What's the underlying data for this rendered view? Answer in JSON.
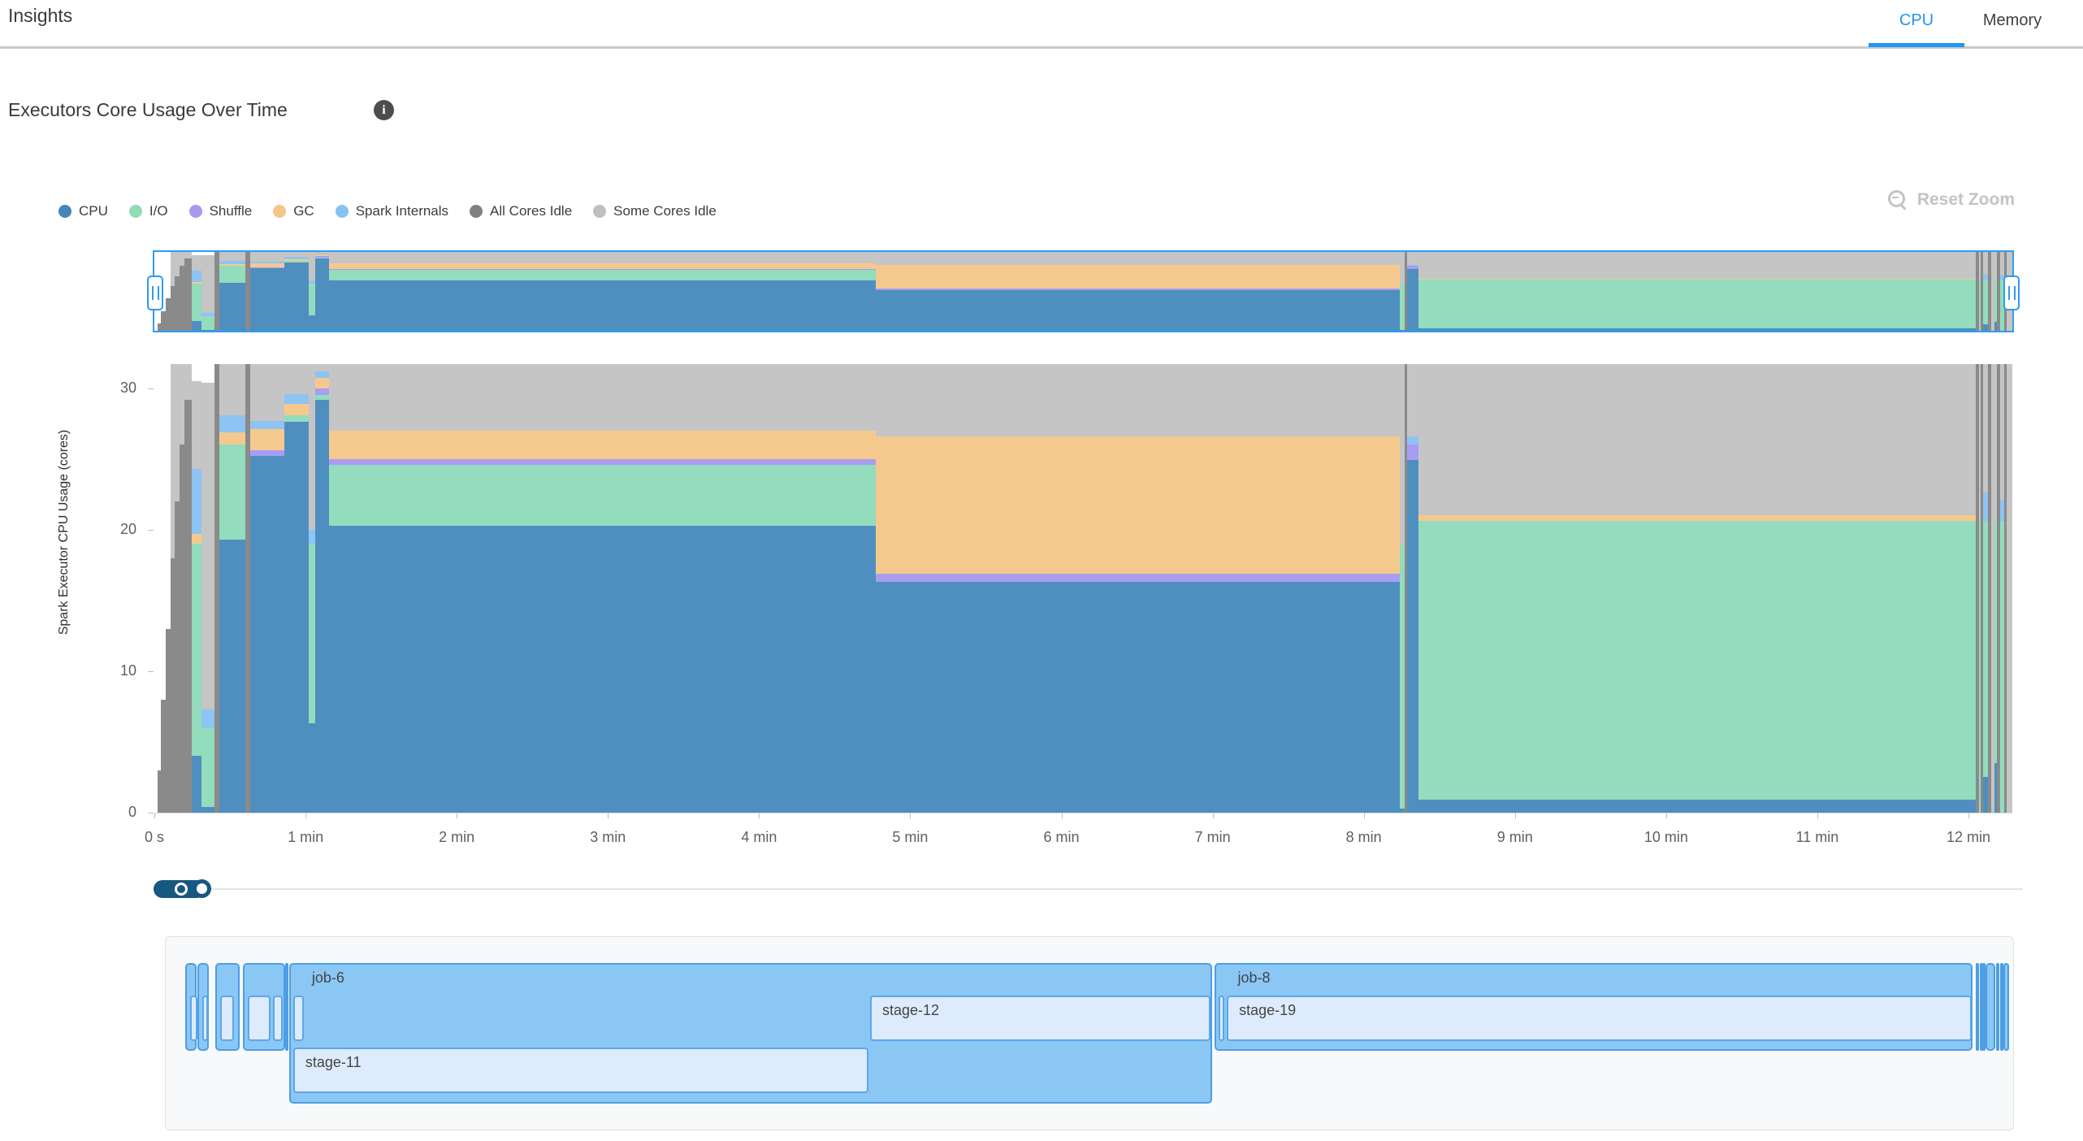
{
  "header": {
    "title": "Insights",
    "tabs": [
      {
        "label": "CPU",
        "active": true
      },
      {
        "label": "Memory",
        "active": false
      }
    ]
  },
  "section": {
    "title": "Executors Core Usage Over Time",
    "info_glyph": "i"
  },
  "toolbar": {
    "reset_zoom_label": "Reset Zoom"
  },
  "legend": [
    {
      "key": "cpu",
      "label": "CPU",
      "color": "#4486b8"
    },
    {
      "key": "io",
      "label": "I/O",
      "color": "#8fdcb5"
    },
    {
      "key": "shuffle",
      "label": "Shuffle",
      "color": "#a799f0"
    },
    {
      "key": "gc",
      "label": "GC",
      "color": "#f4c688"
    },
    {
      "key": "internals",
      "label": "Spark Internals",
      "color": "#87c3f0"
    },
    {
      "key": "all_idle",
      "label": "All Cores Idle",
      "color": "#808080"
    },
    {
      "key": "some_idle",
      "label": "Some Cores Idle",
      "color": "#bfbfbf"
    }
  ],
  "chart_data": {
    "type": "area",
    "title": "Executors Core Usage Over Time",
    "ylabel": "Spark Executor CPU Usage (cores)",
    "ylim": [
      0,
      31.7
    ],
    "yticks": [
      0,
      10,
      20,
      30
    ],
    "xlim_minutes": [
      0,
      12.29
    ],
    "xticks": [
      {
        "minute": 0,
        "label": "0 s"
      },
      {
        "minute": 1,
        "label": "1 min"
      },
      {
        "minute": 2,
        "label": "2 min"
      },
      {
        "minute": 3,
        "label": "3 min"
      },
      {
        "minute": 4,
        "label": "4 min"
      },
      {
        "minute": 5,
        "label": "5 min"
      },
      {
        "minute": 6,
        "label": "6 min"
      },
      {
        "minute": 7,
        "label": "7 min"
      },
      {
        "minute": 8,
        "label": "8 min"
      },
      {
        "minute": 9,
        "label": "9 min"
      },
      {
        "minute": 10,
        "label": "10 min"
      },
      {
        "minute": 11,
        "label": "11 min"
      },
      {
        "minute": 12,
        "label": "12 min"
      }
    ],
    "series_order": [
      "cpu",
      "io",
      "shuffle",
      "gc",
      "internals",
      "all_idle",
      "some_idle"
    ],
    "colors": {
      "cpu": "#4e8fc0",
      "io": "#93dcbd",
      "shuffle": "#a89df2",
      "gc": "#f5c98e",
      "internals": "#8dc4f3",
      "all_idle": "#8a8a8a",
      "some_idle": "#c5c5c5"
    },
    "legend_position": "top-left",
    "grid": false,
    "segments": [
      {
        "t0": 0.02,
        "t1": 0.045,
        "all_idle": 3
      },
      {
        "t0": 0.045,
        "t1": 0.075,
        "all_idle": 8
      },
      {
        "t0": 0.075,
        "t1": 0.105,
        "all_idle": 13
      },
      {
        "t0": 0.105,
        "t1": 0.135,
        "all_idle": 18,
        "some_idle": 13.7
      },
      {
        "t0": 0.135,
        "t1": 0.165,
        "all_idle": 22,
        "some_idle": 9.7
      },
      {
        "t0": 0.165,
        "t1": 0.2,
        "all_idle": 26,
        "some_idle": 5.7
      },
      {
        "t0": 0.2,
        "t1": 0.245,
        "all_idle": 29.2,
        "some_idle": 2.5
      },
      {
        "t0": 0.245,
        "t1": 0.31,
        "cpu": 4,
        "io": 15,
        "gc": 0.7,
        "internals": 4.6,
        "some_idle": 6.2
      },
      {
        "t0": 0.31,
        "t1": 0.4,
        "cpu": 0.4,
        "io": 5.6,
        "internals": 1.3,
        "some_idle": 23.1
      },
      {
        "t0": 0.4,
        "t1": 0.43,
        "all_idle": 31.7
      },
      {
        "t0": 0.43,
        "t1": 0.6,
        "cpu": 19.3,
        "io": 6.7,
        "gc": 0.9,
        "internals": 1.2,
        "some_idle": 3.6
      },
      {
        "t0": 0.6,
        "t1": 0.635,
        "all_idle": 31.7
      },
      {
        "t0": 0.635,
        "t1": 0.86,
        "cpu": 25.2,
        "shuffle": 0.4,
        "gc": 1.5,
        "internals": 0.6,
        "some_idle": 4.0
      },
      {
        "t0": 0.86,
        "t1": 1.02,
        "cpu": 27.6,
        "io": 0.5,
        "gc": 0.8,
        "internals": 0.7,
        "some_idle": 2.1
      },
      {
        "t0": 1.02,
        "t1": 1.065,
        "cpu": 6.3,
        "io": 12.7,
        "internals": 1.0,
        "some_idle": 11.7
      },
      {
        "t0": 1.065,
        "t1": 1.155,
        "cpu": 29.2,
        "io": 0.3,
        "shuffle": 0.5,
        "gc": 0.7,
        "internals": 0.5,
        "some_idle": 0.5
      },
      {
        "t0": 1.155,
        "t1": 4.77,
        "cpu": 20.3,
        "io": 4.3,
        "shuffle": 0.4,
        "gc": 2.0,
        "some_idle": 4.7
      },
      {
        "t0": 4.77,
        "t1": 8.24,
        "cpu": 16.3,
        "shuffle": 0.6,
        "gc": 9.7,
        "some_idle": 5.1
      },
      {
        "t0": 8.24,
        "t1": 8.27,
        "cpu": 0.3,
        "io": 18.6,
        "some_idle": 12.8
      },
      {
        "t0": 8.27,
        "t1": 8.285,
        "all_idle": 31.7
      },
      {
        "t0": 8.285,
        "t1": 8.36,
        "cpu": 24.9,
        "shuffle": 1.1,
        "internals": 0.6,
        "some_idle": 5.1
      },
      {
        "t0": 8.36,
        "t1": 12.05,
        "cpu": 0.9,
        "io": 19.7,
        "gc": 0.4,
        "some_idle": 10.7
      },
      {
        "t0": 12.05,
        "t1": 12.068,
        "all_idle": 31.7
      },
      {
        "t0": 12.068,
        "t1": 12.082,
        "io": 20.6,
        "some_idle": 11.1
      },
      {
        "t0": 12.082,
        "t1": 12.098,
        "all_idle": 31.7
      },
      {
        "t0": 12.098,
        "t1": 12.128,
        "cpu": 2.5,
        "io": 18.1,
        "internals": 2.0,
        "some_idle": 9.1
      },
      {
        "t0": 12.128,
        "t1": 12.148,
        "all_idle": 31.7
      },
      {
        "t0": 12.148,
        "t1": 12.172,
        "some_idle": 31.7
      },
      {
        "t0": 12.172,
        "t1": 12.19,
        "cpu": 3.5,
        "io": 17.1,
        "some_idle": 11.1
      },
      {
        "t0": 12.19,
        "t1": 12.21,
        "all_idle": 31.7
      },
      {
        "t0": 12.21,
        "t1": 12.238,
        "io": 20.6,
        "internals": 1.5,
        "some_idle": 9.6
      },
      {
        "t0": 12.238,
        "t1": 12.255,
        "all_idle": 31.7
      },
      {
        "t0": 12.255,
        "t1": 12.29,
        "some_idle": 31.7
      }
    ]
  },
  "gantt": {
    "jobs": [
      {
        "label": "",
        "t0": 0.199,
        "t1": 0.274,
        "rows": 1,
        "stages": [
          {
            "t0": 0.22,
            "t1": 0.268,
            "row": 0,
            "label": ""
          }
        ]
      },
      {
        "label": "",
        "t0": 0.279,
        "t1": 0.354,
        "rows": 1,
        "stages": [
          {
            "t0": 0.301,
            "t1": 0.338,
            "row": 0,
            "label": ""
          }
        ]
      },
      {
        "label": "",
        "t0": 0.397,
        "t1": 0.558,
        "rows": 1,
        "stages": [
          {
            "t0": 0.419,
            "t1": 0.51,
            "row": 0,
            "label": ""
          }
        ]
      },
      {
        "label": "",
        "t0": 0.58,
        "t1": 0.859,
        "rows": 1,
        "stages": [
          {
            "t0": 0.601,
            "t1": 0.751,
            "row": 0,
            "label": ""
          },
          {
            "t0": 0.767,
            "t1": 0.832,
            "row": 0,
            "label": ""
          }
        ]
      },
      {
        "label": "",
        "t0": 0.861,
        "t1": 0.883,
        "rows": 1,
        "stages": []
      },
      {
        "label": "job-6",
        "t0": 0.886,
        "t1": 6.989,
        "rows": 2,
        "stages": [
          {
            "t0": 0.902,
            "t1": 0.971,
            "row": 0,
            "label": ""
          },
          {
            "t0": 4.718,
            "t1": 6.972,
            "row": 0,
            "label": "stage-12"
          },
          {
            "t0": 0.902,
            "t1": 4.707,
            "row": 1,
            "label": "stage-11"
          }
        ]
      },
      {
        "label": "job-8",
        "t0": 7.01,
        "t1": 12.023,
        "rows": 1,
        "stages": [
          {
            "t0": 7.026,
            "t1": 7.064,
            "row": 0,
            "label": ""
          },
          {
            "t0": 7.078,
            "t1": 12.008,
            "row": 0,
            "label": "stage-19"
          }
        ]
      },
      {
        "label": "",
        "t0": 12.045,
        "t1": 12.062,
        "rows": 1,
        "stages": []
      },
      {
        "label": "",
        "t0": 12.068,
        "t1": 12.082,
        "rows": 1,
        "stages": []
      },
      {
        "label": "",
        "t0": 12.088,
        "t1": 12.1,
        "rows": 1,
        "stages": []
      },
      {
        "label": "",
        "t0": 12.106,
        "t1": 12.17,
        "rows": 1,
        "stages": []
      },
      {
        "label": "",
        "t0": 12.178,
        "t1": 12.196,
        "rows": 1,
        "stages": []
      },
      {
        "label": "",
        "t0": 12.205,
        "t1": 12.218,
        "rows": 1,
        "stages": []
      },
      {
        "label": "",
        "t0": 12.228,
        "t1": 12.262,
        "rows": 1,
        "stages": []
      }
    ]
  }
}
